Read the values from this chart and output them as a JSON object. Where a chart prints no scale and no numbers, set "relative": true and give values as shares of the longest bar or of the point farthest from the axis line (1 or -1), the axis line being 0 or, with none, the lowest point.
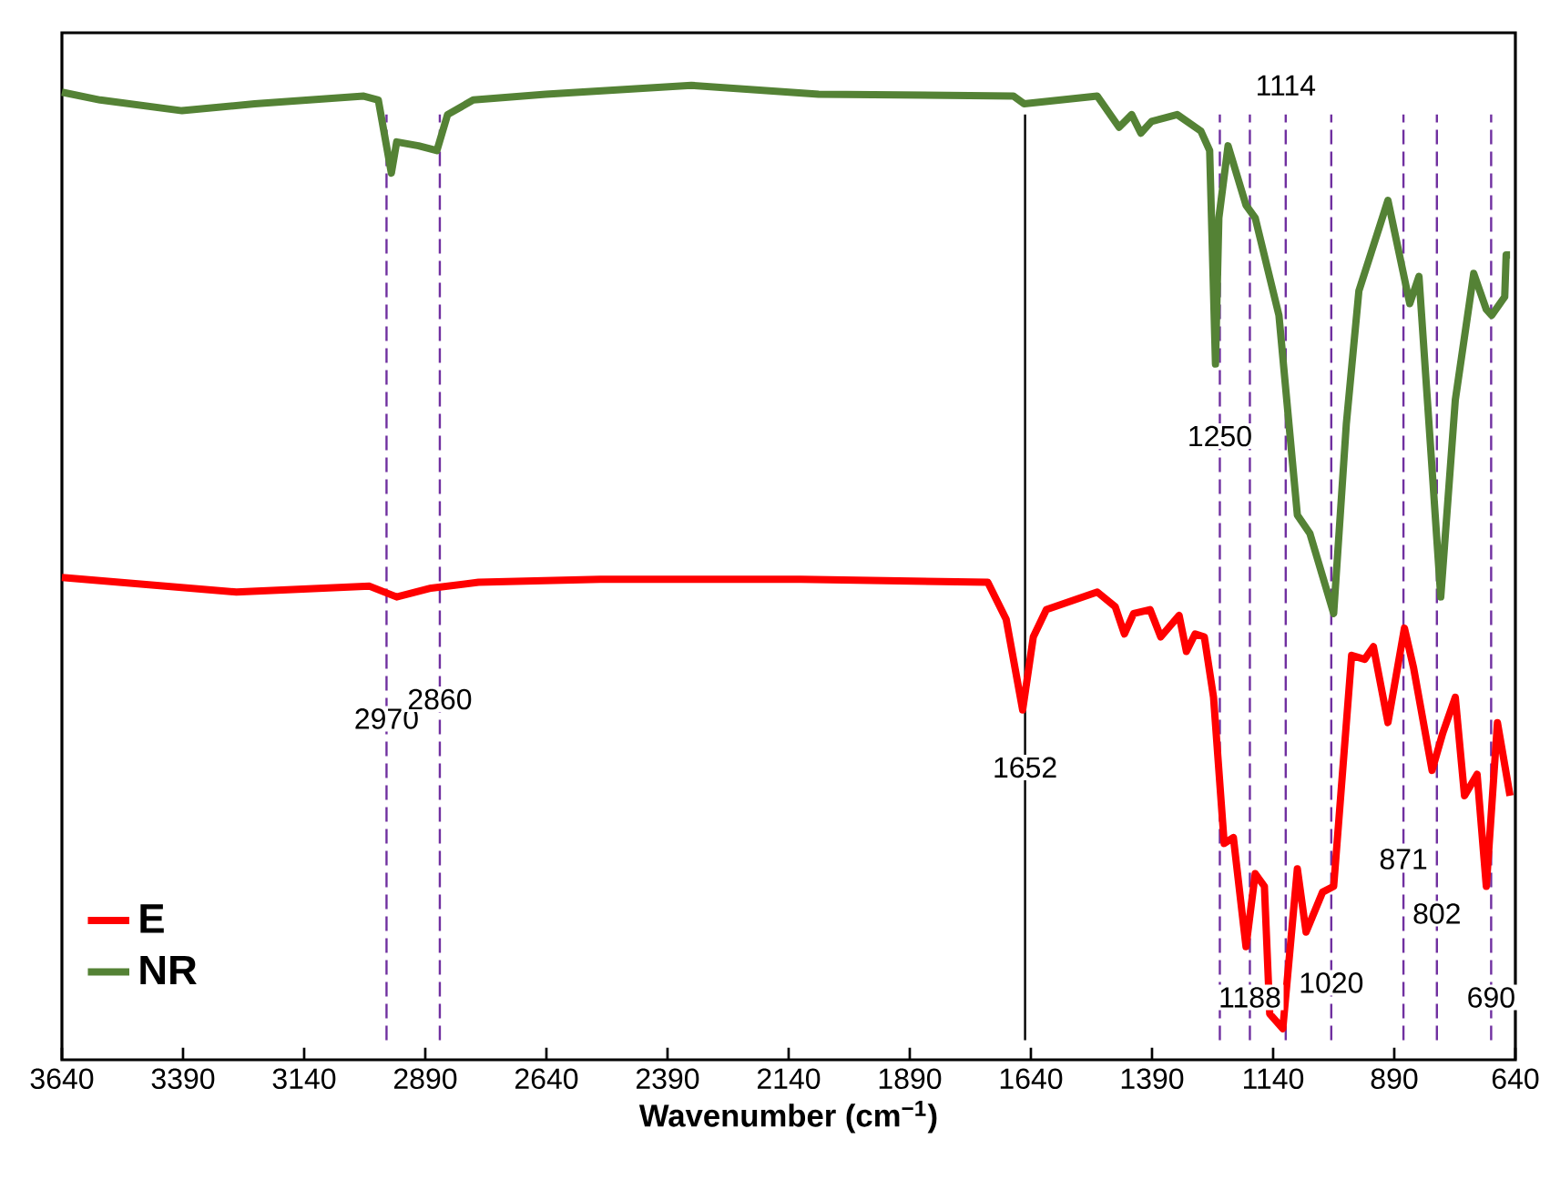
{
  "chart_data": {
    "type": "line",
    "relative": true,
    "xlabel": "Wavenumber (cm$^{−1}$)",
    "xlim": [
      3640,
      640
    ],
    "xticks": [
      3640,
      3390,
      3140,
      2890,
      2640,
      2390,
      2140,
      1890,
      1640,
      1390,
      1140,
      890,
      640
    ],
    "tick_labels": "x",
    "grid": false,
    "legend": "bottom left",
    "marker": "none",
    "line_style": "solid",
    "series": [
      {
        "name": "E",
        "color": "#ff0000",
        "x": [
          3640,
          3280,
          3005,
          2949,
          2878,
          2780,
          2529,
          2115,
          1729,
          1691,
          1657,
          1635,
          1608,
          1503,
          1466,
          1447,
          1428,
          1394,
          1372,
          1334,
          1319,
          1301,
          1282,
          1263,
          1241,
          1222,
          1196,
          1177,
          1158,
          1147,
          1120,
          1090,
          1072,
          1038,
          1015,
          978,
          951,
          933,
          903,
          869,
          850,
          812,
          790,
          764,
          745,
          719,
          700,
          677,
          651
        ],
        "values": [
          0.495,
          0.48,
          0.486,
          0.475,
          0.484,
          0.49,
          0.493,
          0.493,
          0.49,
          0.452,
          0.359,
          0.434,
          0.462,
          0.48,
          0.465,
          0.437,
          0.458,
          0.462,
          0.434,
          0.456,
          0.419,
          0.437,
          0.434,
          0.372,
          0.222,
          0.228,
          0.116,
          0.191,
          0.178,
          0.047,
          0.032,
          0.196,
          0.131,
          0.172,
          0.178,
          0.415,
          0.411,
          0.424,
          0.346,
          0.443,
          0.402,
          0.297,
          0.335,
          0.372,
          0.271,
          0.293,
          0.178,
          0.346,
          0.271
        ]
      },
      {
        "name": "NR",
        "color": "#548235",
        "x": [
          3640,
          3561,
          3392,
          3242,
          3017,
          2987,
          2960,
          2949,
          2904,
          2866,
          2844,
          2791,
          2641,
          2341,
          2078,
          1676,
          1654,
          1503,
          1458,
          1432,
          1413,
          1391,
          1338,
          1289,
          1271,
          1259,
          1252,
          1233,
          1196,
          1177,
          1128,
          1090,
          1064,
          1015,
          989,
          963,
          903,
          858,
          839,
          794,
          764,
          726,
          700,
          689,
          662,
          659,
          651
        ],
        "values": [
          0.993,
          0.985,
          0.974,
          0.981,
          0.989,
          0.985,
          0.91,
          0.942,
          0.938,
          0.933,
          0.97,
          0.985,
          0.991,
          1,
          0.991,
          0.989,
          0.981,
          0.989,
          0.957,
          0.97,
          0.951,
          0.963,
          0.97,
          0.953,
          0.933,
          0.714,
          0.864,
          0.938,
          0.877,
          0.864,
          0.764,
          0.559,
          0.54,
          0.458,
          0.652,
          0.789,
          0.882,
          0.776,
          0.804,
          0.475,
          0.677,
          0.807,
          0.77,
          0.764,
          0.783,
          0.826,
          0.826
        ]
      }
    ],
    "ref_lines": [
      {
        "axis": "x",
        "value": 2970,
        "color": "#7030a0",
        "line_style": "dashed"
      },
      {
        "axis": "x",
        "value": 2860,
        "color": "#7030a0",
        "line_style": "dashed"
      },
      {
        "axis": "x",
        "value": 1652,
        "color": "#000000",
        "line_style": "solid"
      },
      {
        "axis": "x",
        "value": 1250,
        "color": "#7030a0",
        "line_style": "dashed"
      },
      {
        "axis": "x",
        "value": 1188,
        "color": "#7030a0",
        "line_style": "dashed"
      },
      {
        "axis": "x",
        "value": 1114,
        "color": "#7030a0",
        "line_style": "dashed"
      },
      {
        "axis": "x",
        "value": 1020,
        "color": "#7030a0",
        "line_style": "dashed"
      },
      {
        "axis": "x",
        "value": 871,
        "color": "#7030a0",
        "line_style": "dashed"
      },
      {
        "axis": "x",
        "value": 802,
        "color": "#7030a0",
        "line_style": "dashed"
      },
      {
        "axis": "x",
        "value": 690,
        "color": "#7030a0",
        "line_style": "dashed"
      }
    ],
    "annotations": [
      {
        "text": "2970",
        "x": 2970,
        "y": 0.35
      },
      {
        "text": "2860",
        "x": 2860,
        "y": 0.37
      },
      {
        "text": "1652",
        "x": 1652,
        "y": 0.3
      },
      {
        "text": "1250",
        "x": 1250,
        "y": 0.64
      },
      {
        "text": "1114",
        "x": 1114,
        "y": 1.0
      },
      {
        "text": "1188",
        "x": 1188,
        "y": 0.064
      },
      {
        "text": "1020",
        "x": 1020,
        "y": 0.079
      },
      {
        "text": "871",
        "x": 871,
        "y": 0.206
      },
      {
        "text": "802",
        "x": 802,
        "y": 0.15
      },
      {
        "text": "690",
        "x": 690,
        "y": 0.064
      }
    ]
  }
}
